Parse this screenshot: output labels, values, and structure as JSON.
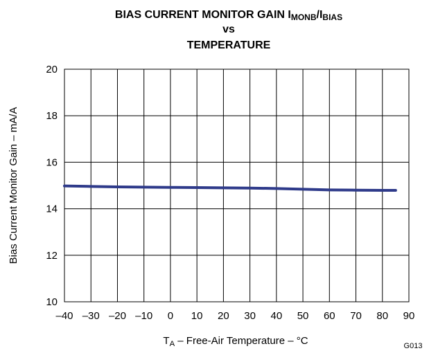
{
  "chart_data": {
    "type": "line",
    "title": [
      {
        "text": "BIAS CURRENT MONITOR GAIN I"
      },
      {
        "text": "MONB",
        "subscript": true
      },
      {
        "text": "/I"
      },
      {
        "text": "BIAS",
        "subscript": true
      }
    ],
    "title_line2": "vs",
    "title_line3": "TEMPERATURE",
    "x_label": [
      {
        "text": "T"
      },
      {
        "text": "A",
        "subscript": true
      },
      {
        "text": " – Free-Air Temperature – °C"
      }
    ],
    "y_label": "Bias Current Monitor Gain – mA/A",
    "note": "G013",
    "x": [
      -40,
      -30,
      -20,
      -10,
      0,
      10,
      20,
      30,
      40,
      50,
      60,
      70,
      80,
      85
    ],
    "series": [
      {
        "name": "Gain",
        "color": "#2e3a8a",
        "values": [
          14.98,
          14.96,
          14.94,
          14.93,
          14.92,
          14.91,
          14.9,
          14.89,
          14.87,
          14.84,
          14.81,
          14.8,
          14.79,
          14.79
        ]
      }
    ],
    "xlim": [
      -40,
      90
    ],
    "xticks": [
      {
        "value": -40,
        "label": "–40"
      },
      {
        "value": -30,
        "label": "–30"
      },
      {
        "value": -20,
        "label": "–20"
      },
      {
        "value": -10,
        "label": "–10"
      },
      0,
      10,
      20,
      30,
      40,
      50,
      60,
      70,
      80,
      90
    ],
    "ylim": [
      10,
      20
    ],
    "yticks": [
      10,
      12,
      14,
      16,
      18,
      20
    ],
    "grid": true
  }
}
